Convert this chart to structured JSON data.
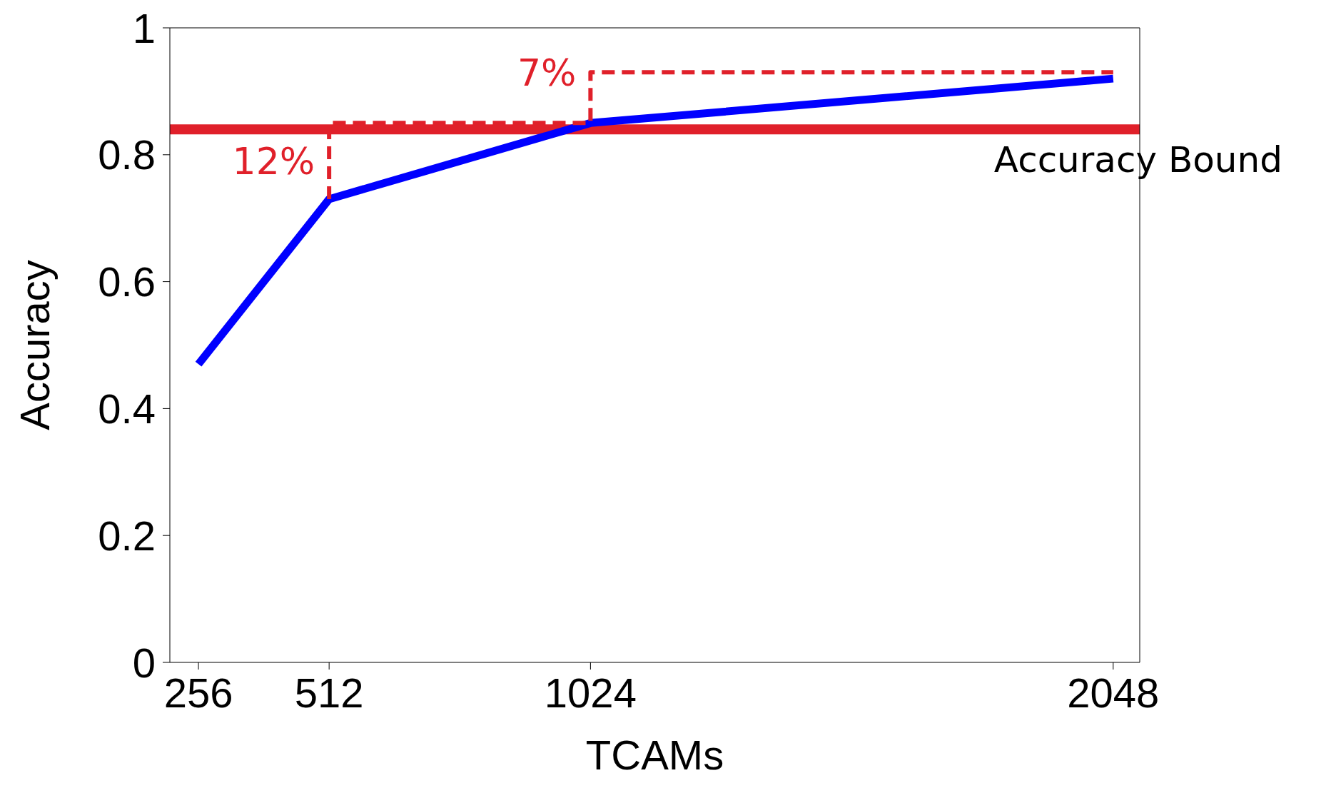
{
  "chart_data": {
    "type": "line",
    "xlabel": "TCAMs",
    "ylabel": "Accuracy",
    "xlim": [
      200,
      2100
    ],
    "xticks": [
      256,
      512,
      1024,
      2048
    ],
    "ylim": [
      0,
      1
    ],
    "yticks": [
      0,
      0.2,
      0.4,
      0.6,
      0.8,
      1
    ],
    "marker": "none",
    "series": [
      {
        "color": "#0000ff",
        "x": [
          256,
          512,
          1024,
          2048
        ],
        "values": [
          0.47,
          0.73,
          0.85,
          0.92
        ],
        "line_style": "solid"
      },
      {
        "color": "#e0202a",
        "x": [
          512,
          512,
          1024,
          1024,
          2048
        ],
        "values": [
          0.73,
          0.85,
          0.85,
          0.93,
          0.93
        ],
        "line_style": "dashed"
      }
    ],
    "ref_lines": [
      {
        "axis": "y",
        "value": 0.84,
        "label": "Accuracy Bound",
        "color": "#e0202a",
        "line_style": "solid"
      }
    ],
    "annotations": [
      "12%",
      "7%"
    ]
  }
}
